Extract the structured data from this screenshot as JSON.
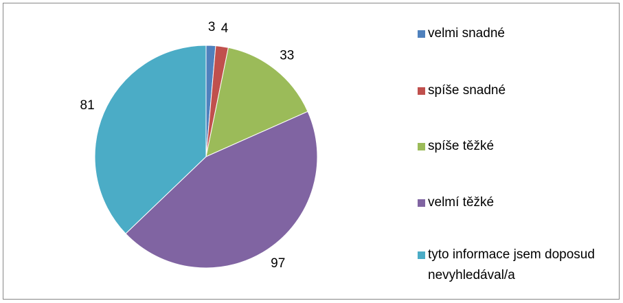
{
  "chart_data": {
    "type": "pie",
    "categories": [
      "velmi snadné",
      "spíše snadné",
      "spíše těžké",
      "velmí těžké",
      "tyto informace jsem doposud nevyhledával/a"
    ],
    "values": [
      3,
      4,
      33,
      97,
      81
    ],
    "colors": [
      "#4f81bd",
      "#c0504d",
      "#9bbb59",
      "#8064a2",
      "#4bacc6"
    ],
    "legend": "right"
  }
}
